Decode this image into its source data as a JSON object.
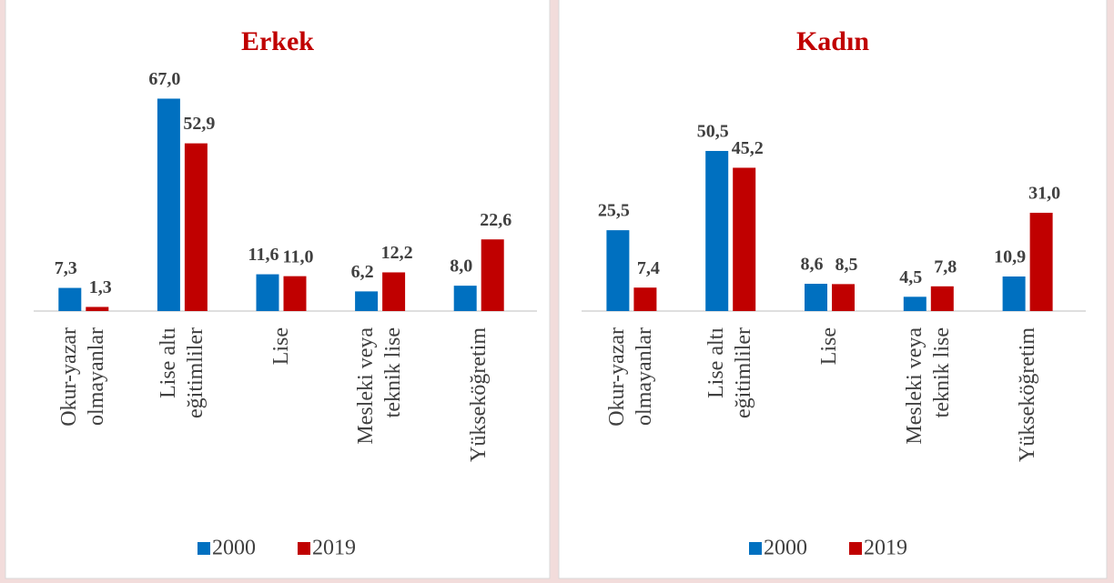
{
  "chart_data": [
    {
      "type": "bar",
      "title": "Erkek",
      "categories": [
        "Okur-yazar olmayanlar",
        "Lise altı eğitimliler",
        "Lise",
        "Mesleki veya teknik lise",
        "Yükseköğretim"
      ],
      "series": [
        {
          "name": "2000",
          "color": "#0070c0",
          "values": [
            7.3,
            67.0,
            11.6,
            6.2,
            8.0
          ],
          "value_labels": [
            "7,3",
            "67,0",
            "11,6",
            "6,2",
            "8,0"
          ]
        },
        {
          "name": "2019",
          "color": "#c00000",
          "values": [
            1.3,
            52.9,
            11.0,
            12.2,
            22.6
          ],
          "value_labels": [
            "1,3",
            "52,9",
            "11,0",
            "12,2",
            "22,6"
          ]
        }
      ],
      "ylim": [
        0,
        70
      ],
      "legend": "bottom"
    },
    {
      "type": "bar",
      "title": "Kadın",
      "categories": [
        "Okur-yazar olmayanlar",
        "Lise altı eğitimliler",
        "Lise",
        "Mesleki veya teknik lise",
        "Yükseköğretim"
      ],
      "series": [
        {
          "name": "2000",
          "color": "#0070c0",
          "values": [
            25.5,
            50.5,
            8.6,
            4.5,
            10.9
          ],
          "value_labels": [
            "25,5",
            "50,5",
            "8,6",
            "4,5",
            "10,9"
          ]
        },
        {
          "name": "2019",
          "color": "#c00000",
          "values": [
            7.4,
            45.2,
            8.5,
            7.8,
            31.0
          ],
          "value_labels": [
            "7,4",
            "45,2",
            "8,5",
            "7,8",
            "31,0"
          ]
        }
      ],
      "ylim": [
        0,
        70
      ],
      "legend": "bottom"
    }
  ]
}
